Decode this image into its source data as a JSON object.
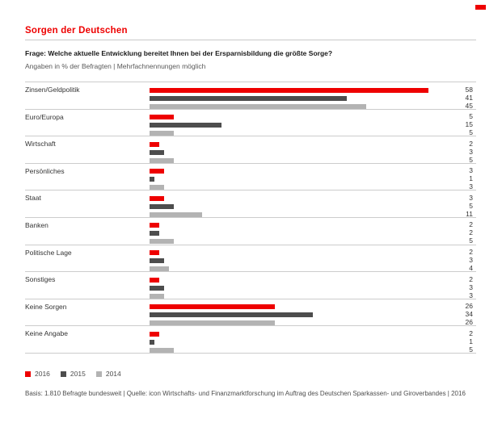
{
  "page": {
    "title": "Sorgen der Deutschen",
    "question": "Frage: Welche aktuelle Entwicklung bereitet Ihnen bei der Ersparnisbildung die größte Sorge?",
    "subtitle": "Angaben in % der Befragten | Mehrfachnennungen möglich",
    "footer": "Basis: 1.810 Befragte bundesweit | Quelle: icon Wirtschafts- und Finanzmarktforschung im Auftrag des Deutschen Sparkassen- und Giroverbandes | 2016"
  },
  "colors": {
    "red": "#ee0000",
    "dark_gray": "#4d4d4d",
    "light_gray": "#b3b3b3",
    "separator": "#cccccc"
  },
  "legend": [
    {
      "label": "2016",
      "color": "#ee0000"
    },
    {
      "label": "2015",
      "color": "#4d4d4d"
    },
    {
      "label": "2014",
      "color": "#b3b3b3"
    }
  ],
  "chart_data": {
    "type": "bar",
    "orientation": "horizontal",
    "title": "Sorgen der Deutschen",
    "xlabel": "Angaben in % der Befragten",
    "xlim": [
      0,
      63
    ],
    "grid": false,
    "legend_position": "bottom-left",
    "value_labels": "right-aligned",
    "categories": [
      "Zinsen/Geldpolitik",
      "Euro/Europa",
      "Wirtschaft",
      "Persönliches",
      "Staat",
      "Banken",
      "Politische Lage",
      "Sonstiges",
      "Keine Sorgen",
      "Keine Angabe"
    ],
    "series": [
      {
        "name": "2016",
        "color": "#ee0000",
        "values": [
          58,
          5,
          2,
          3,
          3,
          2,
          2,
          2,
          26,
          2
        ]
      },
      {
        "name": "2015",
        "color": "#4d4d4d",
        "values": [
          41,
          15,
          3,
          1,
          5,
          2,
          3,
          3,
          34,
          1
        ]
      },
      {
        "name": "2014",
        "color": "#b3b3b3",
        "values": [
          45,
          5,
          5,
          3,
          11,
          5,
          4,
          3,
          26,
          5
        ]
      }
    ]
  }
}
